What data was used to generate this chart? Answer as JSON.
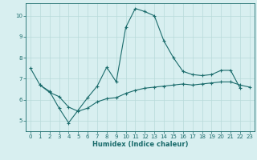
{
  "xlabel": "Humidex (Indice chaleur)",
  "background_color": "#d8eff0",
  "line_color": "#1a6b6b",
  "xlim": [
    -0.5,
    23.5
  ],
  "ylim": [
    4.5,
    10.6
  ],
  "xticks": [
    0,
    1,
    2,
    3,
    4,
    5,
    6,
    7,
    8,
    9,
    10,
    11,
    12,
    13,
    14,
    15,
    16,
    17,
    18,
    19,
    20,
    21,
    22,
    23
  ],
  "yticks": [
    5,
    6,
    7,
    8,
    9,
    10
  ],
  "line1_x": [
    0,
    1,
    2,
    3,
    4,
    5,
    6,
    7,
    8,
    9,
    10,
    11,
    12,
    13,
    14,
    15,
    16,
    17,
    18,
    19,
    20,
    21,
    22
  ],
  "line1_y": [
    7.5,
    6.7,
    6.4,
    5.6,
    4.9,
    5.5,
    6.1,
    6.65,
    7.55,
    6.85,
    9.45,
    10.35,
    10.2,
    10.0,
    8.8,
    8.0,
    7.35,
    7.2,
    7.15,
    7.2,
    7.4,
    7.4,
    6.55
  ],
  "line2_x": [
    1,
    2,
    3,
    4,
    5,
    6,
    7,
    8,
    9,
    10,
    11,
    12,
    13,
    14,
    15,
    16,
    17,
    18,
    19,
    20,
    21,
    22,
    23
  ],
  "line2_y": [
    6.7,
    6.35,
    6.15,
    5.65,
    5.45,
    5.6,
    5.9,
    6.05,
    6.1,
    6.3,
    6.45,
    6.55,
    6.6,
    6.65,
    6.7,
    6.75,
    6.7,
    6.75,
    6.8,
    6.85,
    6.85,
    6.7,
    6.6
  ],
  "grid_color": "#b8dada",
  "marker": "+"
}
